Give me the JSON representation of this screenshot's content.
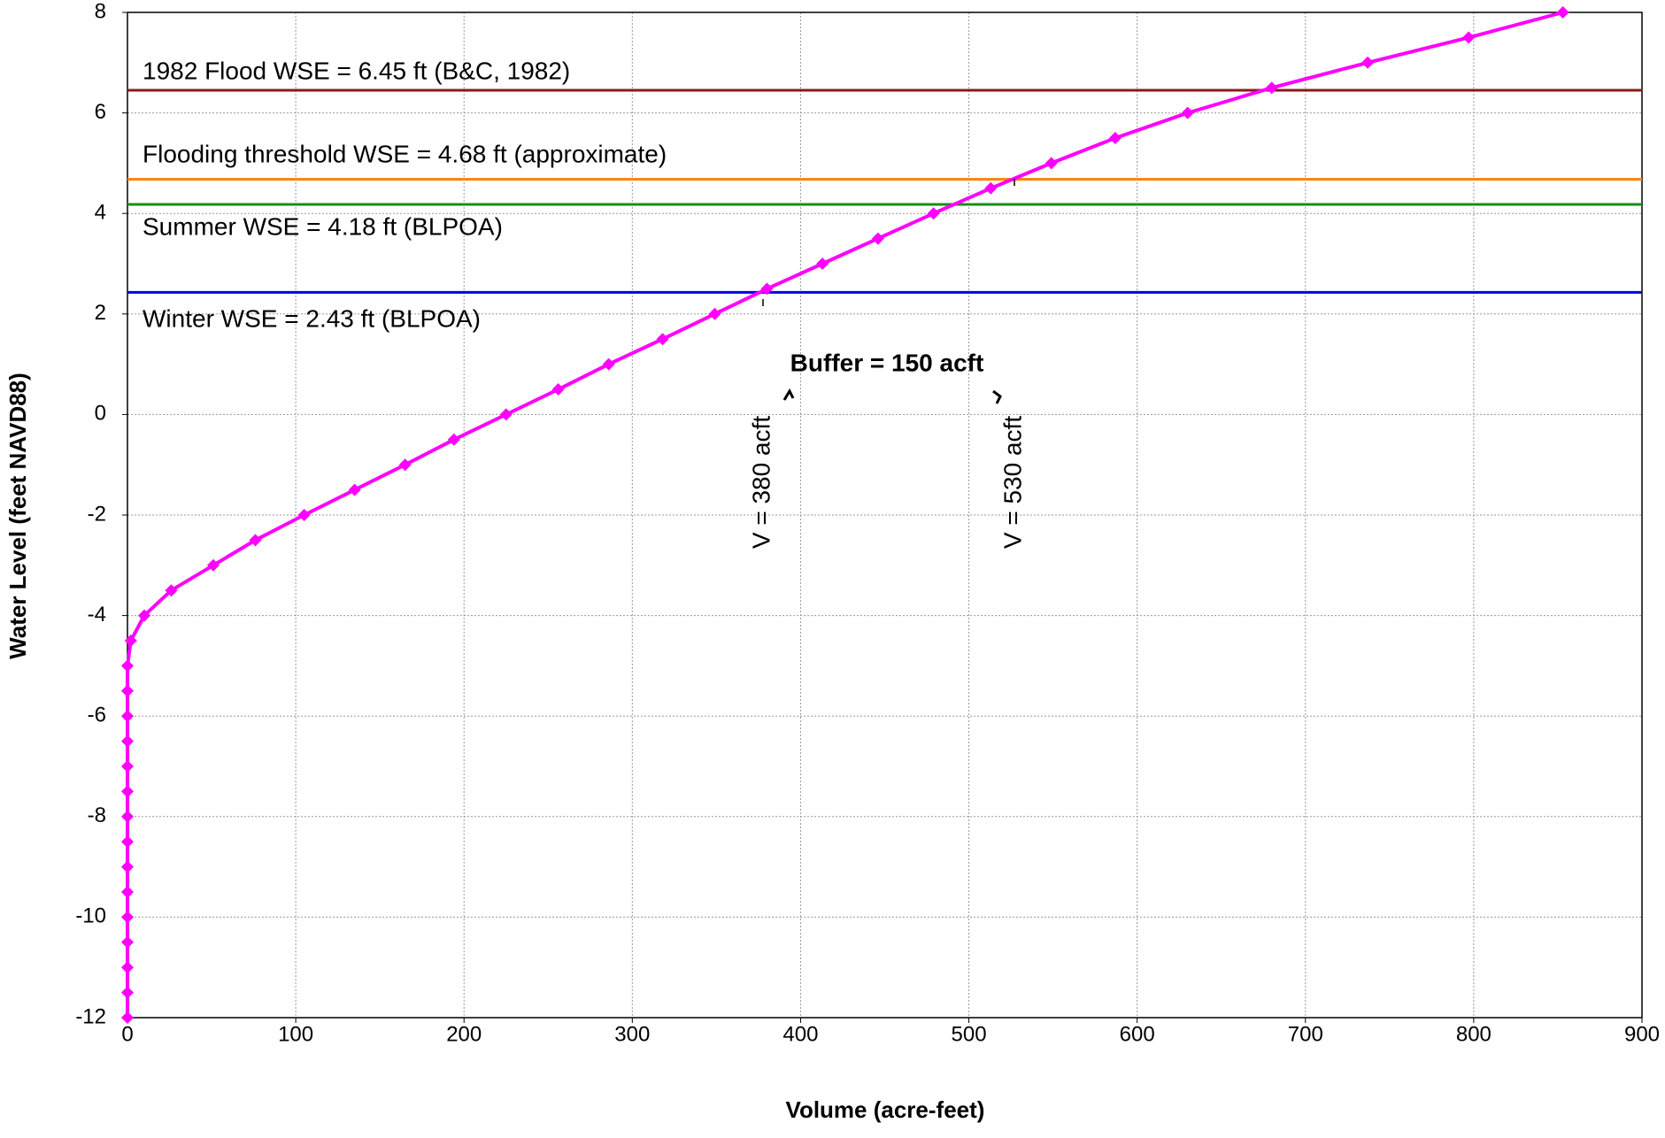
{
  "chart_data": {
    "type": "line",
    "x_label": "Volume (acre-feet)",
    "y_label": "Water Level (feet  NAVD88)",
    "series": [
      {
        "color": "#ff00ff",
        "x": [
          0,
          0,
          0,
          0,
          0,
          0,
          0,
          0,
          0,
          0,
          0,
          0,
          0,
          0,
          0,
          2,
          10,
          26,
          51,
          76,
          105,
          135,
          165,
          194,
          225,
          256,
          286,
          318,
          349,
          380,
          413,
          446,
          479,
          513,
          549,
          587,
          630,
          680,
          737,
          797,
          853
        ],
        "values": [
          -12,
          -11.5,
          -11,
          -10.5,
          -10,
          -9.5,
          -9,
          -8.5,
          -8,
          -7.5,
          -7,
          -6.5,
          -6,
          -5.5,
          -5,
          -4.5,
          -4,
          -3.5,
          -3,
          -2.5,
          -2,
          -1.5,
          -1,
          -0.5,
          0,
          0.5,
          1,
          1.5,
          2,
          2.5,
          3,
          3.5,
          4,
          4.5,
          5,
          5.5,
          6,
          6.5,
          7,
          7.5,
          8
        ]
      }
    ],
    "reference_lines": [
      {
        "value": 6.45,
        "label": "1982 Flood WSE = 6.45 ft (B&C, 1982)",
        "color": "#8b1a1a"
      },
      {
        "value": 4.68,
        "label": "Flooding threshold WSE = 4.68 ft (approximate)",
        "color": "#ff8000"
      },
      {
        "value": 4.18,
        "label": "Summer WSE = 4.18 ft  (BLPOA)",
        "color": "#1a8c1a"
      },
      {
        "value": 2.43,
        "label": "Winter WSE = 2.43 ft (BLPOA)",
        "color": "#0000dd"
      }
    ],
    "annotations": [
      "Buffer = 150 acft",
      "V = 380 acft",
      "V = 530 acft"
    ],
    "xlim": [
      0,
      900
    ],
    "xticks": [
      0,
      100,
      200,
      300,
      400,
      500,
      600,
      700,
      800,
      900
    ],
    "ylim": [
      -12,
      8
    ],
    "yticks": [
      -12,
      -10,
      -8,
      -6,
      -4,
      -2,
      0,
      2,
      4,
      6,
      8
    ],
    "grid": true
  }
}
